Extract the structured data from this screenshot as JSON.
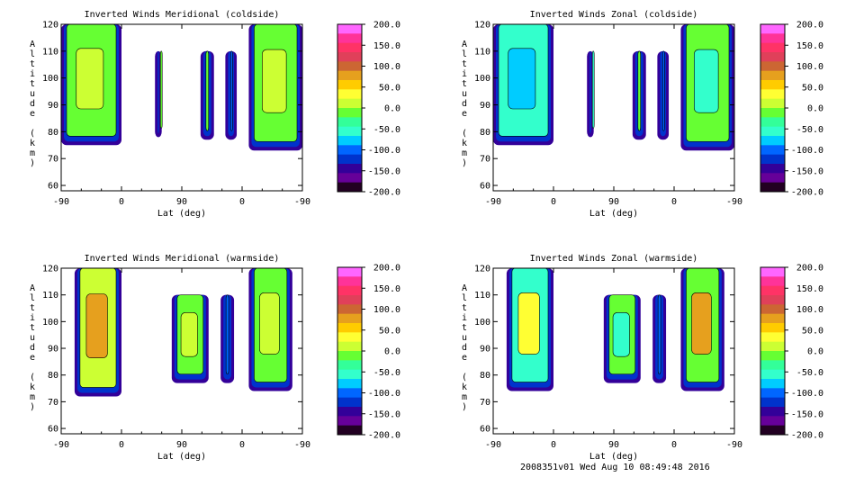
{
  "footer": "2008351v01 Wed Aug 10 08:49:48 2016",
  "colorbar": {
    "ticks": [
      "200.0",
      "150.0",
      "100.0",
      "50.0",
      "0.0",
      "-50.0",
      "-100.0",
      "-150.0",
      "-200.0"
    ],
    "values": [
      200,
      150,
      100,
      50,
      0,
      -50,
      -100,
      -150,
      -200
    ],
    "palette": [
      "#ff66ff",
      "#ff3399",
      "#ff3366",
      "#e0405a",
      "#cc6633",
      "#e6a01e",
      "#ffcc00",
      "#ffff33",
      "#ccff33",
      "#66ff33",
      "#33ff99",
      "#33ffcc",
      "#00ccff",
      "#0066ff",
      "#0033cc",
      "#330099",
      "#660099",
      "#220022"
    ]
  },
  "chart_data": [
    {
      "type": "heatmap",
      "title": "Inverted Winds Meridional (coldside)",
      "xlabel": "Lat (deg)",
      "ylabel": "Altitude (km)",
      "xticks": [
        "-90",
        "0",
        "90",
        "0",
        "-90"
      ],
      "yticks": [
        "60",
        "70",
        "80",
        "90",
        "100",
        "110",
        "120"
      ],
      "ylim": [
        58,
        120
      ],
      "zlim": [
        -200,
        200
      ],
      "bands": [
        {
          "x": [
            -90,
            0
          ],
          "y": [
            75,
            120
          ],
          "fill": "#66ff33",
          "inner": "#ccff33"
        },
        {
          "x": [
            50,
            60
          ],
          "y": [
            78,
            110
          ],
          "fill": "#66ff33",
          "inner": "#ccff33"
        },
        {
          "x": [
            118,
            138
          ],
          "y": [
            77,
            110
          ],
          "fill": "#66ff33",
          "inner": "#ccff33"
        },
        {
          "x": [
            155,
            172
          ],
          "y": [
            77,
            110
          ],
          "fill": "#0066ff",
          "inner": "#0033cc"
        },
        {
          "x": [
            190,
            270
          ],
          "y": [
            73,
            120
          ],
          "fill": "#66ff33",
          "inner": "#ccff33"
        }
      ]
    },
    {
      "type": "heatmap",
      "title": "Inverted Winds Zonal (coldside)",
      "xlabel": "Lat (deg)",
      "ylabel": "Altitude (km)",
      "xticks": [
        "-90",
        "0",
        "90",
        "0",
        "-90"
      ],
      "yticks": [
        "60",
        "70",
        "80",
        "90",
        "100",
        "110",
        "120"
      ],
      "ylim": [
        58,
        120
      ],
      "zlim": [
        -200,
        200
      ],
      "bands": [
        {
          "x": [
            -90,
            0
          ],
          "y": [
            75,
            120
          ],
          "fill": "#33ffcc",
          "inner": "#00ccff"
        },
        {
          "x": [
            50,
            60
          ],
          "y": [
            78,
            110
          ],
          "fill": "#33ffcc",
          "inner": "#66ff33"
        },
        {
          "x": [
            118,
            138
          ],
          "y": [
            77,
            110
          ],
          "fill": "#66ff33",
          "inner": "#33ffcc"
        },
        {
          "x": [
            155,
            172
          ],
          "y": [
            77,
            110
          ],
          "fill": "#0066ff",
          "inner": "#0033cc"
        },
        {
          "x": [
            190,
            270
          ],
          "y": [
            73,
            120
          ],
          "fill": "#66ff33",
          "inner": "#33ffcc"
        }
      ]
    },
    {
      "type": "heatmap",
      "title": "Inverted Winds Meridional (warmside)",
      "xlabel": "Lat (deg)",
      "ylabel": "Altitude (km)",
      "xticks": [
        "-90",
        "0",
        "90",
        "0",
        "-90"
      ],
      "yticks": [
        "60",
        "70",
        "80",
        "90",
        "100",
        "110",
        "120"
      ],
      "ylim": [
        58,
        120
      ],
      "zlim": [
        -200,
        200
      ],
      "bands": [
        {
          "x": [
            -70,
            0
          ],
          "y": [
            72,
            120
          ],
          "fill": "#ccff33",
          "inner": "#e6a01e"
        },
        {
          "x": [
            75,
            130
          ],
          "y": [
            77,
            110
          ],
          "fill": "#66ff33",
          "inner": "#ccff33"
        },
        {
          "x": [
            148,
            168
          ],
          "y": [
            77,
            110
          ],
          "fill": "#0066ff",
          "inner": "#0033cc"
        },
        {
          "x": [
            190,
            255
          ],
          "y": [
            74,
            120
          ],
          "fill": "#66ff33",
          "inner": "#ccff33"
        }
      ]
    },
    {
      "type": "heatmap",
      "title": "Inverted Winds Zonal (warmside)",
      "xlabel": "Lat (deg)",
      "ylabel": "Altitude (km)",
      "xticks": [
        "-90",
        "0",
        "90",
        "0",
        "-90"
      ],
      "yticks": [
        "60",
        "70",
        "80",
        "90",
        "100",
        "110",
        "120"
      ],
      "ylim": [
        58,
        120
      ],
      "zlim": [
        -200,
        200
      ],
      "bands": [
        {
          "x": [
            -70,
            0
          ],
          "y": [
            74,
            120
          ],
          "fill": "#33ffcc",
          "inner": "#ffff33"
        },
        {
          "x": [
            75,
            130
          ],
          "y": [
            77,
            110
          ],
          "fill": "#66ff33",
          "inner": "#33ffcc"
        },
        {
          "x": [
            148,
            168
          ],
          "y": [
            77,
            110
          ],
          "fill": "#0066ff",
          "inner": "#0033cc"
        },
        {
          "x": [
            190,
            255
          ],
          "y": [
            74,
            120
          ],
          "fill": "#66ff33",
          "inner": "#e6a01e"
        }
      ]
    }
  ]
}
